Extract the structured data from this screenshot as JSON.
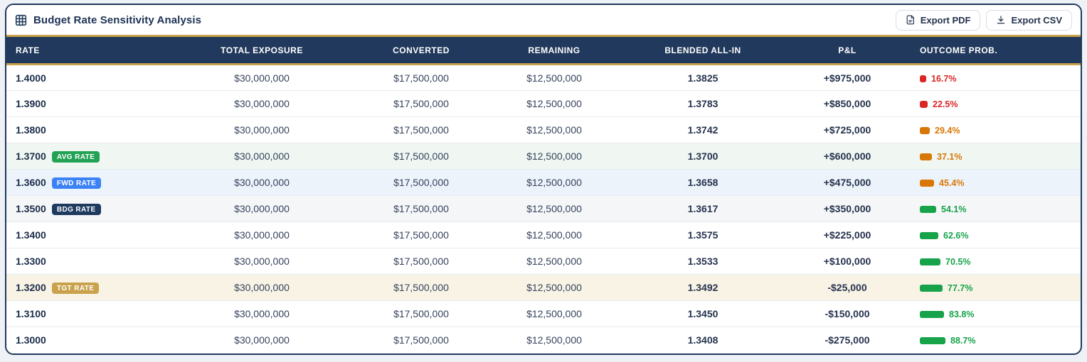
{
  "header": {
    "title": "Budget Rate Sensitivity Analysis",
    "export_pdf_label": "Export PDF",
    "export_csv_label": "Export CSV"
  },
  "colors": {
    "navy_header": "#21395c",
    "gold_accent": "#c9a24b",
    "prob_red": "#dc2626",
    "prob_orange": "#d97706",
    "prob_green": "#16a34a",
    "badge_avg_green": "#21a254",
    "badge_fwd_blue": "#3b82f6",
    "badge_bdg_navy": "#1e3a5f",
    "badge_tgt_gold": "#c9a24b"
  },
  "table": {
    "columns": [
      "RATE",
      "TOTAL EXPOSURE",
      "CONVERTED",
      "REMAINING",
      "BLENDED ALL-IN",
      "P&L",
      "OUTCOME PROB."
    ],
    "rows": [
      {
        "rate": "1.4000",
        "badge": "",
        "badge_type": "",
        "row_tint": "",
        "total_exposure": "$30,000,000",
        "converted": "$17,500,000",
        "remaining": "$12,500,000",
        "blended_all_in": "1.3825",
        "pnl": "+$975,000",
        "outcome_prob": "16.7%",
        "outcome_value": 16.7,
        "outcome_level": "red"
      },
      {
        "rate": "1.3900",
        "badge": "",
        "badge_type": "",
        "row_tint": "",
        "total_exposure": "$30,000,000",
        "converted": "$17,500,000",
        "remaining": "$12,500,000",
        "blended_all_in": "1.3783",
        "pnl": "+$850,000",
        "outcome_prob": "22.5%",
        "outcome_value": 22.5,
        "outcome_level": "red"
      },
      {
        "rate": "1.3800",
        "badge": "",
        "badge_type": "",
        "row_tint": "",
        "total_exposure": "$30,000,000",
        "converted": "$17,500,000",
        "remaining": "$12,500,000",
        "blended_all_in": "1.3742",
        "pnl": "+$725,000",
        "outcome_prob": "29.4%",
        "outcome_value": 29.4,
        "outcome_level": "orange"
      },
      {
        "rate": "1.3700",
        "badge": "AVG RATE",
        "badge_type": "avg",
        "row_tint": "green",
        "total_exposure": "$30,000,000",
        "converted": "$17,500,000",
        "remaining": "$12,500,000",
        "blended_all_in": "1.3700",
        "pnl": "+$600,000",
        "outcome_prob": "37.1%",
        "outcome_value": 37.1,
        "outcome_level": "orange"
      },
      {
        "rate": "1.3600",
        "badge": "FWD RATE",
        "badge_type": "fwd",
        "row_tint": "blue",
        "total_exposure": "$30,000,000",
        "converted": "$17,500,000",
        "remaining": "$12,500,000",
        "blended_all_in": "1.3658",
        "pnl": "+$475,000",
        "outcome_prob": "45.4%",
        "outcome_value": 45.4,
        "outcome_level": "orange"
      },
      {
        "rate": "1.3500",
        "badge": "BDG RATE",
        "badge_type": "bdg",
        "row_tint": "gray",
        "total_exposure": "$30,000,000",
        "converted": "$17,500,000",
        "remaining": "$12,500,000",
        "blended_all_in": "1.3617",
        "pnl": "+$350,000",
        "outcome_prob": "54.1%",
        "outcome_value": 54.1,
        "outcome_level": "green"
      },
      {
        "rate": "1.3400",
        "badge": "",
        "badge_type": "",
        "row_tint": "",
        "total_exposure": "$30,000,000",
        "converted": "$17,500,000",
        "remaining": "$12,500,000",
        "blended_all_in": "1.3575",
        "pnl": "+$225,000",
        "outcome_prob": "62.6%",
        "outcome_value": 62.6,
        "outcome_level": "green"
      },
      {
        "rate": "1.3300",
        "badge": "",
        "badge_type": "",
        "row_tint": "",
        "total_exposure": "$30,000,000",
        "converted": "$17,500,000",
        "remaining": "$12,500,000",
        "blended_all_in": "1.3533",
        "pnl": "+$100,000",
        "outcome_prob": "70.5%",
        "outcome_value": 70.5,
        "outcome_level": "green"
      },
      {
        "rate": "1.3200",
        "badge": "TGT RATE",
        "badge_type": "tgt",
        "row_tint": "cream",
        "total_exposure": "$30,000,000",
        "converted": "$17,500,000",
        "remaining": "$12,500,000",
        "blended_all_in": "1.3492",
        "pnl": "-$25,000",
        "outcome_prob": "77.7%",
        "outcome_value": 77.7,
        "outcome_level": "green"
      },
      {
        "rate": "1.3100",
        "badge": "",
        "badge_type": "",
        "row_tint": "",
        "total_exposure": "$30,000,000",
        "converted": "$17,500,000",
        "remaining": "$12,500,000",
        "blended_all_in": "1.3450",
        "pnl": "-$150,000",
        "outcome_prob": "83.8%",
        "outcome_value": 83.8,
        "outcome_level": "green"
      },
      {
        "rate": "1.3000",
        "badge": "",
        "badge_type": "",
        "row_tint": "",
        "total_exposure": "$30,000,000",
        "converted": "$17,500,000",
        "remaining": "$12,500,000",
        "blended_all_in": "1.3408",
        "pnl": "-$275,000",
        "outcome_prob": "88.7%",
        "outcome_value": 88.7,
        "outcome_level": "green"
      }
    ]
  }
}
